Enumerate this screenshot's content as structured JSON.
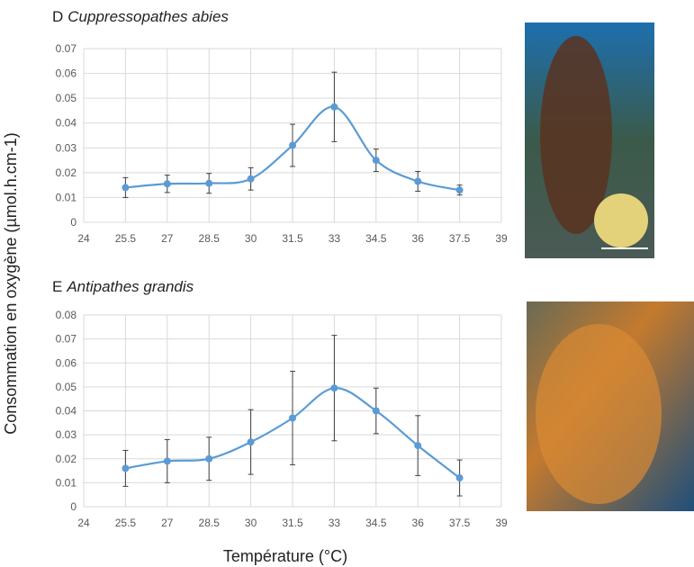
{
  "ylabel": "Consommation en oxygène (µmol.h.cm-1)",
  "xlabel": "Température (°C)",
  "chart_data": [
    {
      "type": "line",
      "panel": "D",
      "title": "Cuppressopathes abies",
      "x": [
        25.5,
        27,
        28.5,
        30,
        31.5,
        33,
        34.5,
        36,
        37.5
      ],
      "values": [
        0.014,
        0.0155,
        0.0157,
        0.0175,
        0.031,
        0.0465,
        0.025,
        0.0165,
        0.013
      ],
      "errors": [
        0.004,
        0.0035,
        0.004,
        0.0045,
        0.0085,
        0.014,
        0.0045,
        0.004,
        0.002
      ],
      "color": "#5b9bd5",
      "xlim": [
        24,
        39
      ],
      "xticks": [
        24,
        25.5,
        27,
        28.5,
        30,
        31.5,
        33,
        34.5,
        36,
        37.5,
        39
      ],
      "ylim": [
        0,
        0.07
      ],
      "yticks": [
        0,
        0.01,
        0.02,
        0.03,
        0.04,
        0.05,
        0.06,
        0.07
      ],
      "grid": true
    },
    {
      "type": "line",
      "panel": "E",
      "title": "Antipathes grandis",
      "x": [
        25.5,
        27,
        28.5,
        30,
        31.5,
        33,
        34.5,
        36,
        37.5
      ],
      "values": [
        0.016,
        0.019,
        0.02,
        0.027,
        0.037,
        0.0495,
        0.04,
        0.0255,
        0.012
      ],
      "errors": [
        0.0075,
        0.009,
        0.009,
        0.0135,
        0.0195,
        0.022,
        0.0095,
        0.0125,
        0.0075
      ],
      "color": "#5b9bd5",
      "xlim": [
        24,
        39
      ],
      "xticks": [
        24,
        25.5,
        27,
        28.5,
        30,
        31.5,
        33,
        34.5,
        36,
        37.5,
        39
      ],
      "ylim": [
        0,
        0.08
      ],
      "yticks": [
        0,
        0.01,
        0.02,
        0.03,
        0.04,
        0.05,
        0.06,
        0.07,
        0.08
      ],
      "grid": true
    }
  ]
}
